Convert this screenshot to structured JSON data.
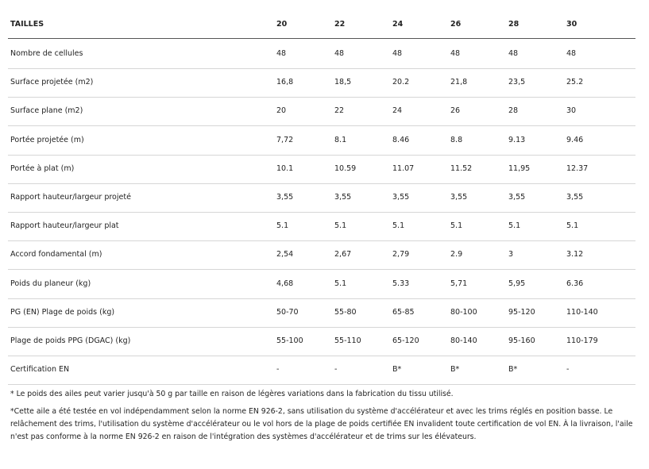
{
  "table": {
    "header": [
      "TAILLES",
      "20",
      "22",
      "24",
      "26",
      "28",
      "30"
    ],
    "rows": [
      [
        "Nombre de cellules",
        "48",
        "48",
        "48",
        "48",
        "48",
        "48"
      ],
      [
        "Surface projetée (m2)",
        "16,8",
        "18,5",
        "20.2",
        "21,8",
        "23,5",
        "25.2"
      ],
      [
        "Surface plane (m2)",
        "20",
        "22",
        "24",
        "26",
        "28",
        "30"
      ],
      [
        "Portée projetée (m)",
        "7,72",
        "8.1",
        "8.46",
        "8.8",
        "9.13",
        "9.46"
      ],
      [
        "Portée à plat (m)",
        "10.1",
        "10.59",
        "11.07",
        "11.52",
        "11,95",
        "12.37"
      ],
      [
        "Rapport hauteur/largeur projeté",
        "3,55",
        "3,55",
        "3,55",
        "3,55",
        "3,55",
        "3,55"
      ],
      [
        "Rapport hauteur/largeur plat",
        "5.1",
        "5.1",
        "5.1",
        "5.1",
        "5.1",
        "5.1"
      ],
      [
        "Accord fondamental (m)",
        "2,54",
        "2,67",
        "2,79",
        "2.9",
        "3",
        "3.12"
      ],
      [
        "Poids du planeur (kg)",
        "4,68",
        "5.1",
        "5.33",
        "5,71",
        "5,95",
        "6.36"
      ],
      [
        "PG (EN) Plage de poids (kg)",
        "50-70",
        "55-80",
        "65-85",
        "80-100",
        "95-120",
        "110-140"
      ],
      [
        "Plage de poids PPG (DGAC) (kg)",
        "55-100",
        "55-110",
        "65-120",
        "80-140",
        "95-160",
        "110-179"
      ],
      [
        "Certification EN",
        "-",
        "-",
        "B*",
        "B*",
        "B*",
        "-"
      ]
    ]
  },
  "notes": [
    "* Le poids des ailes peut varier jusqu'à 50 g par taille en raison de légères variations dans la fabrication du tissu utilisé.",
    "*Cette aile a été testée en vol indépendamment selon la norme EN 926-2, sans utilisation du système d'accélérateur et avec les trims réglés en position basse. Le relâchement des trims, l'utilisation du système d'accélérateur ou le vol hors de la plage de poids certifiée EN invalident toute certification de vol EN. À la livraison, l'aile n'est pas conforme à la norme EN 926-2 en raison de l'intégration des systèmes d'accélérateur et de trims sur les élévateurs."
  ]
}
